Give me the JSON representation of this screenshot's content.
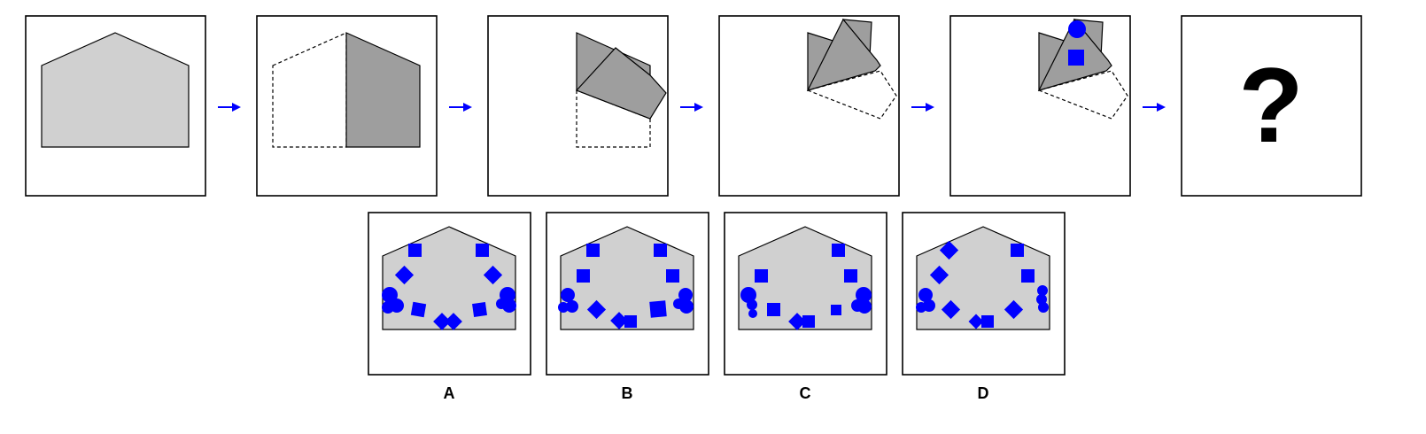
{
  "puzzle": {
    "question_mark": "?",
    "options": [
      {
        "label": "A"
      },
      {
        "label": "B"
      },
      {
        "label": "C"
      },
      {
        "label": "D"
      }
    ],
    "colors": {
      "paper": "#d0d0d0",
      "folded_paper": "#9e9e9e",
      "hole": "#0000ff",
      "arrow": "#0000ff",
      "frame": "#000000"
    },
    "icons": [
      "arrow-right-icon"
    ]
  }
}
